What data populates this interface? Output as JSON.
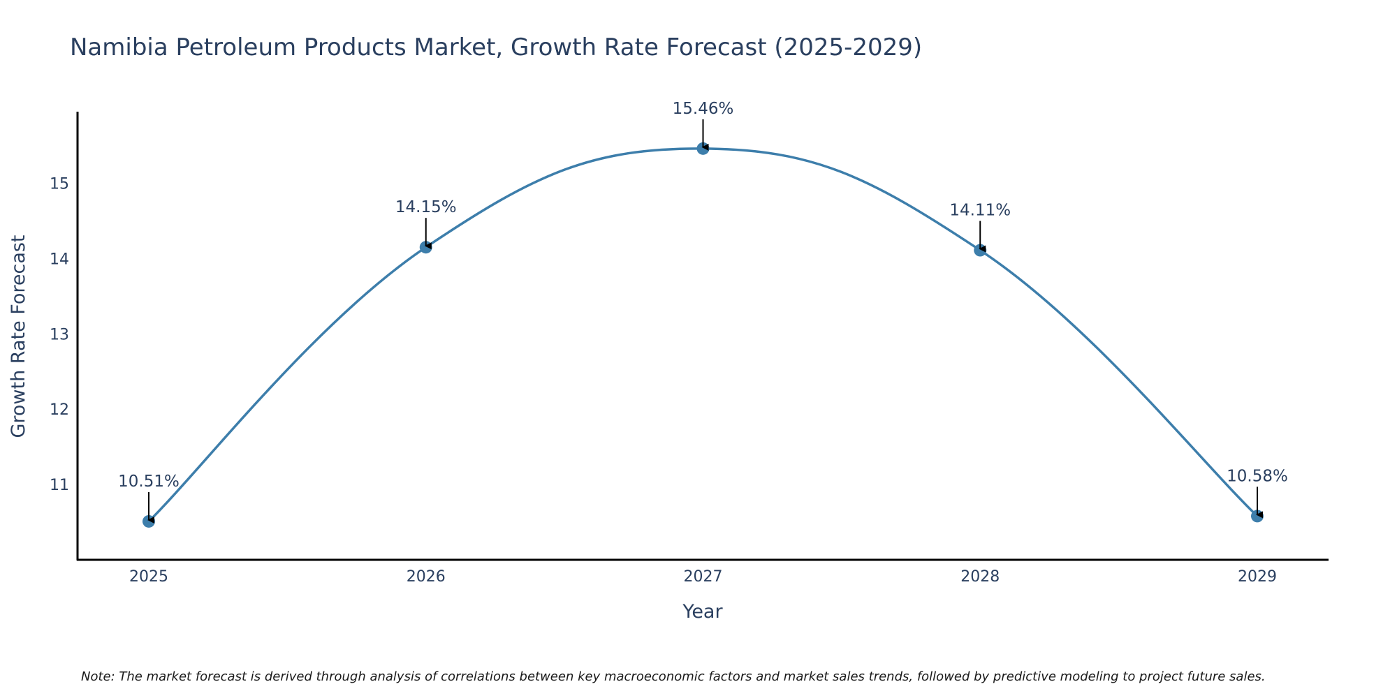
{
  "chart_data": {
    "type": "line",
    "title": "Namibia Petroleum Products Market, Growth Rate Forecast (2025-2029)",
    "xlabel": "Year",
    "ylabel": "Growth Rate Forecast",
    "categories": [
      "2025",
      "2026",
      "2027",
      "2028",
      "2029"
    ],
    "values": [
      10.51,
      14.15,
      15.46,
      14.11,
      10.58
    ],
    "data_labels": [
      "10.51%",
      "14.15%",
      "15.46%",
      "14.11%",
      "10.58%"
    ],
    "yticks": [
      "11",
      "12",
      "13",
      "14",
      "15"
    ],
    "ylim": [
      10.0,
      15.95
    ],
    "line_shape": "spline",
    "line_color": "#3d7eab",
    "marker_color": "#3d7eab",
    "grid": false,
    "note": "Note: The market forecast is derived through analysis of correlations between key macroeconomic factors and market sales trends, followed by predictive modeling to project future sales."
  }
}
